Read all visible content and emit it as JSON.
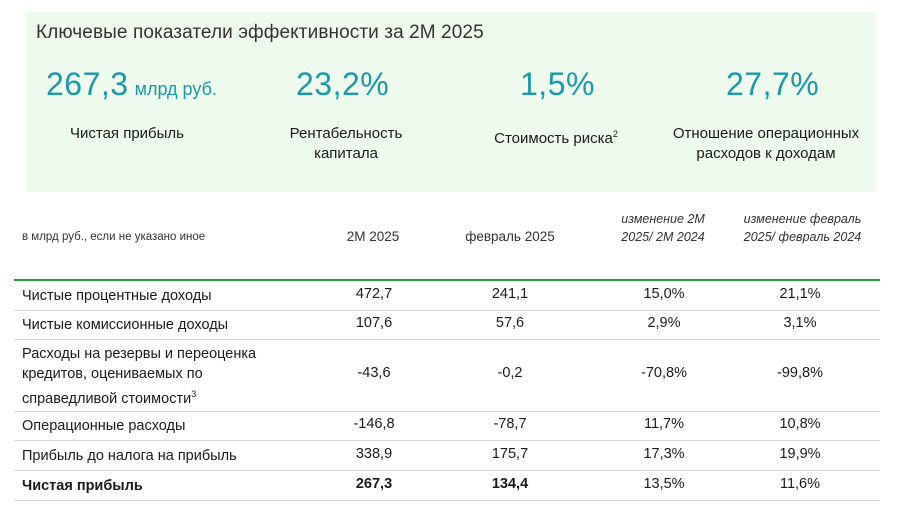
{
  "kpi": {
    "title": "Ключевые показатели эффективности за 2М 2025",
    "items": [
      {
        "value": "267,3",
        "unit": "млрд руб.",
        "label": "Чистая прибыль",
        "sup": ""
      },
      {
        "value": "23,2%",
        "unit": "",
        "label": "Рентабельность капитала",
        "sup": ""
      },
      {
        "value": "1,5%",
        "unit": "",
        "label": "Стоимость риска",
        "sup": "2"
      },
      {
        "value": "27,7%",
        "unit": "",
        "label": "Отношение операционных расходов к доходам",
        "sup": ""
      }
    ],
    "accent_color": "#1a9aa8",
    "panel_color": "#eefaee"
  },
  "table": {
    "header": {
      "note": "в млрд руб., если не указано иное",
      "col1": "2М 2025",
      "col2": "февраль 2025",
      "col3": "изменение 2М 2025/ 2М 2024",
      "col4": "изменение февраль 2025/ февраль 2024"
    },
    "rows": [
      {
        "label": "Чистые процентные доходы",
        "sup": "",
        "v1": "472,7",
        "v2": "241,1",
        "v3": "15,0%",
        "v4": "21,1%"
      },
      {
        "label": "Чистые комиссионные доходы",
        "sup": "",
        "v1": "107,6",
        "v2": "57,6",
        "v3": "2,9%",
        "v4": "3,1%"
      },
      {
        "label": "Расходы на резервы и переоценка кредитов, оцениваемых по справедливой стоимости",
        "sup": "3",
        "v1": "-43,6",
        "v2": "-0,2",
        "v3": "-70,8%",
        "v4": "-99,8%"
      },
      {
        "label": "Операционные расходы",
        "sup": "",
        "v1": "-146,8",
        "v2": "-78,7",
        "v3": "11,7%",
        "v4": "10,8%"
      },
      {
        "label": "Прибыль до налога на прибыль",
        "sup": "",
        "v1": "338,9",
        "v2": "175,7",
        "v3": "17,3%",
        "v4": "19,9%"
      },
      {
        "label": "Чистая прибыль",
        "sup": "",
        "v1": "267,3",
        "v2": "134,4",
        "v3": "13,5%",
        "v4": "11,6%"
      }
    ],
    "header_line_color": "#21a038"
  }
}
